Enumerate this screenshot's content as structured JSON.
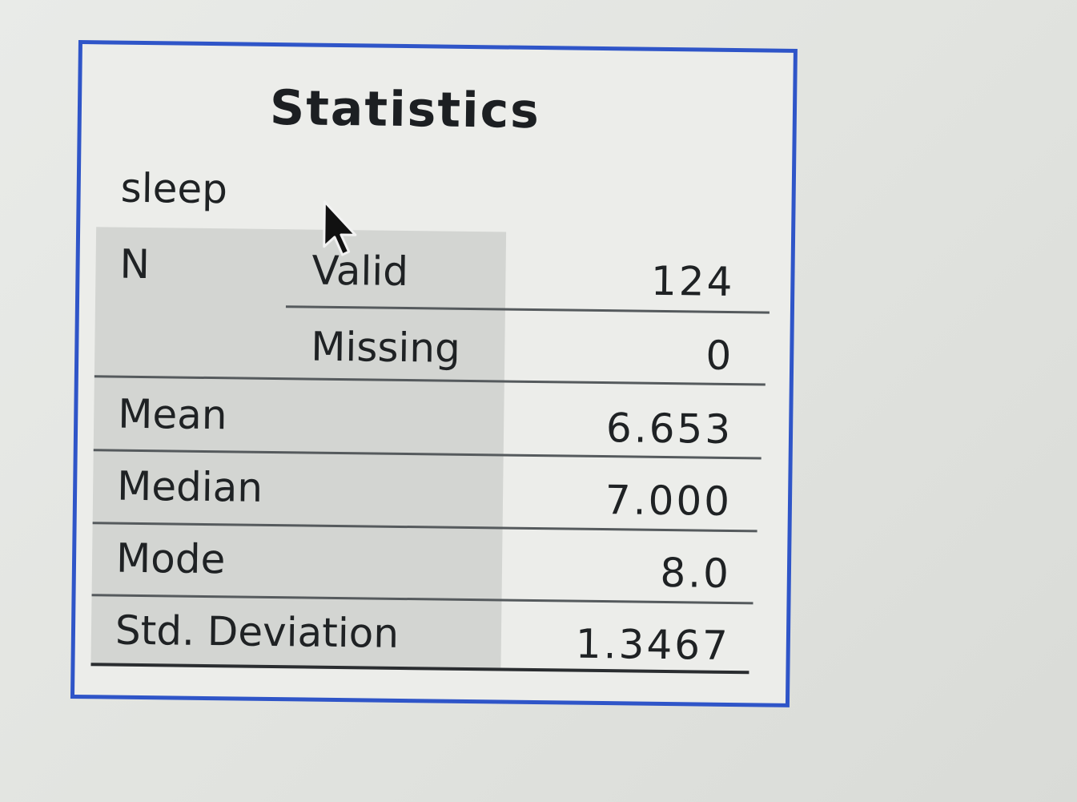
{
  "statistics": {
    "title": "Statistics",
    "variable": "sleep",
    "rows": [
      {
        "label": "N",
        "sublabel": "Valid",
        "value": "124"
      },
      {
        "label": "",
        "sublabel": "Missing",
        "value": "0"
      },
      {
        "label": "Mean",
        "sublabel": "",
        "value": "6.653"
      },
      {
        "label": "Median",
        "sublabel": "",
        "value": "7.000"
      },
      {
        "label": "Mode",
        "sublabel": "",
        "value": "8.0"
      },
      {
        "label": "Std. Deviation",
        "sublabel": "",
        "value": "1.3467"
      }
    ]
  },
  "colors": {
    "border": "#2f55c8",
    "background": "#ecedea",
    "label_shade": "#d3d5d2"
  },
  "icons": {
    "cursor": "mouse-pointer-icon"
  }
}
